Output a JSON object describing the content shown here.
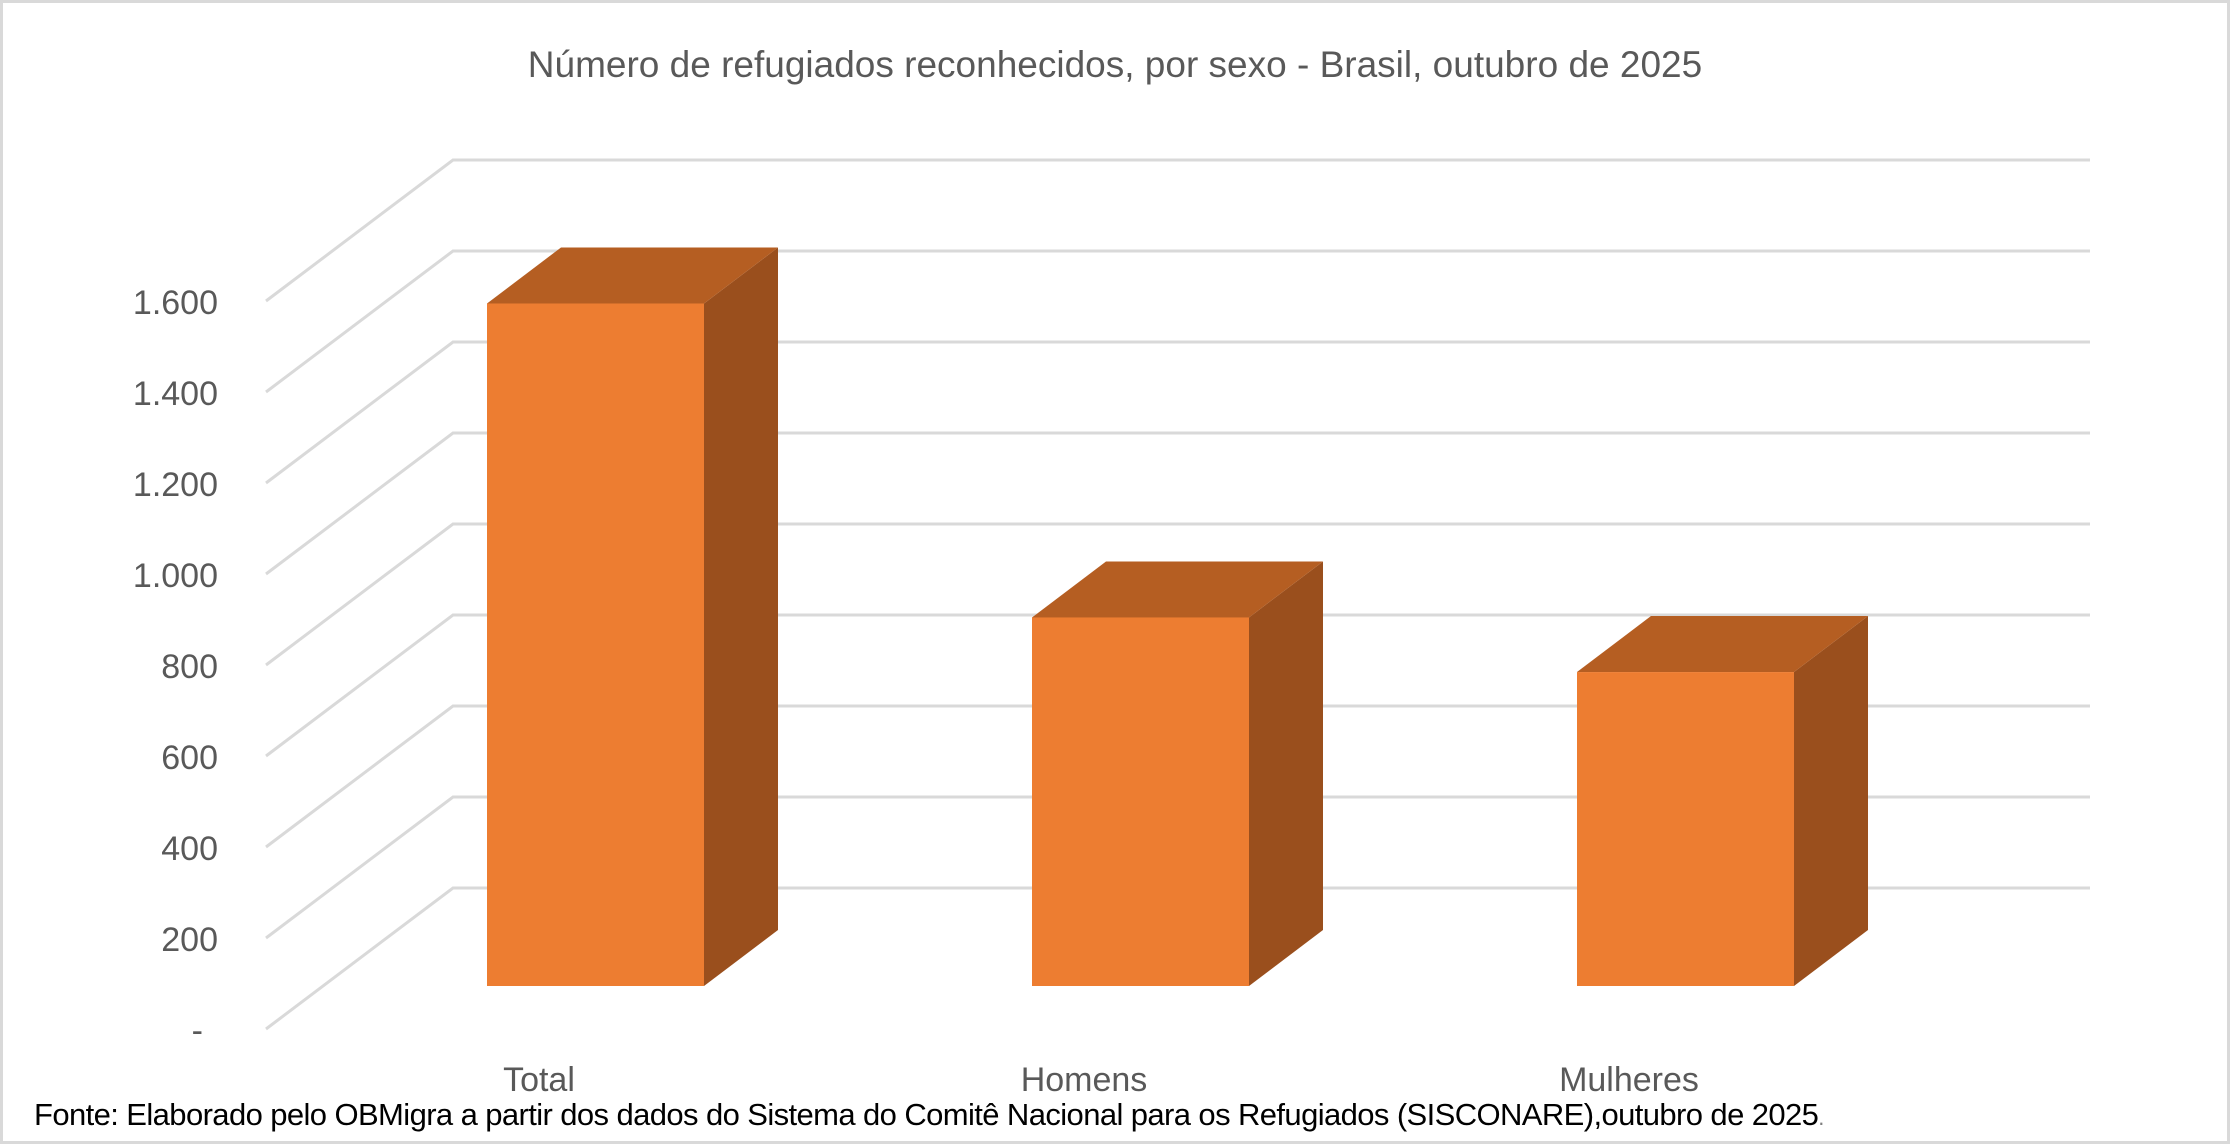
{
  "chart_data": {
    "type": "bar",
    "subtype": "3d-column",
    "title": "Número de refugiados reconhecidos, por sexo - Brasil, outubro de 2025",
    "categories": [
      "Total",
      "Homens",
      "Mulheres"
    ],
    "values": [
      1500,
      810,
      690
    ],
    "xlabel": "",
    "ylabel": "",
    "ylim": [
      0,
      1600
    ],
    "yticks": [
      "-",
      "200",
      "400",
      "600",
      "800",
      "1.000",
      "1.200",
      "1.400",
      "1.600"
    ],
    "grid": true,
    "legend": "none",
    "colors": {
      "front": "#ED7D31",
      "top": "#B55E22",
      "side": "#9A4F1D",
      "grid": "#D9D9D9",
      "text": "#595959"
    }
  },
  "title": "Número de refugiados reconhecidos, por sexo - Brasil, outubro de 2025",
  "y_axis": {
    "labels": [
      "1.600",
      "1.400",
      "1.200",
      "1.000",
      "800",
      "600",
      "400",
      "200",
      "-"
    ]
  },
  "x_axis": {
    "labels": [
      "Total",
      "Homens",
      "Mulheres"
    ]
  },
  "footer": {
    "text": "Fonte: Elaborado pelo OBMigra a partir dos dados  do Sistema do Comitê Nacional para os Refugiados (SISCONARE),outubro de 2025",
    "period": "."
  }
}
